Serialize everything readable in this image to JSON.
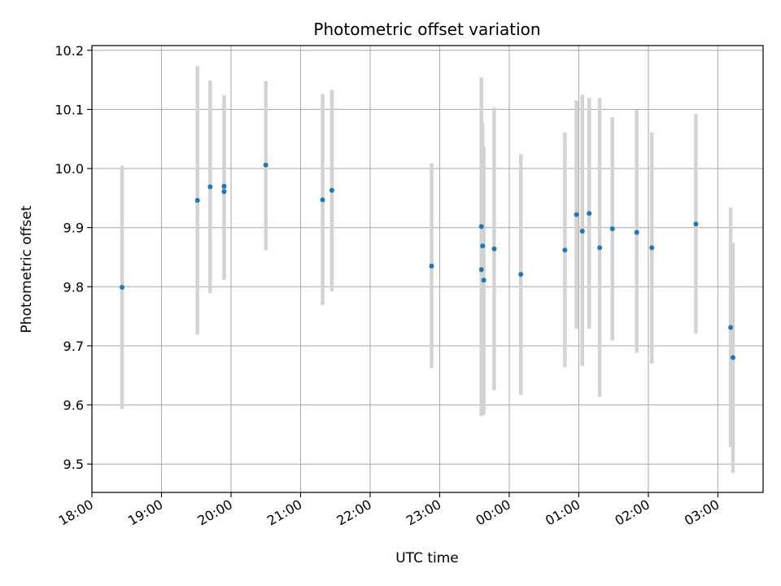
{
  "chart_data": {
    "type": "scatter",
    "title": "Photometric offset variation",
    "xlabel": "UTC time",
    "ylabel": "Photometric offset",
    "x_ticks": [
      "18:00",
      "19:00",
      "20:00",
      "21:00",
      "22:00",
      "23:00",
      "00:00",
      "01:00",
      "02:00",
      "03:00"
    ],
    "y_ticks": [
      "9.5",
      "9.6",
      "9.7",
      "9.8",
      "9.9",
      "10.0",
      "10.1",
      "10.2"
    ],
    "xlim": [
      "18:00",
      "03:39"
    ],
    "ylim": [
      9.452,
      10.208
    ],
    "grid": true,
    "legend": "none",
    "colors": {
      "point": "#1f77b4",
      "errorbar": "#d3d3d3",
      "grid": "#b0b0b0"
    },
    "points": [
      {
        "time": "18:26",
        "y": 9.799,
        "yerr_low": 9.593,
        "yerr_high": 10.005
      },
      {
        "time": "19:31",
        "y": 9.946,
        "yerr_low": 9.719,
        "yerr_high": 10.173
      },
      {
        "time": "19:42",
        "y": 9.969,
        "yerr_low": 9.789,
        "yerr_high": 10.149
      },
      {
        "time": "19:54",
        "y": 9.97,
        "yerr_low": 9.812,
        "yerr_high": 10.124
      },
      {
        "time": "19:54",
        "y": 9.961,
        "yerr_low": 9.812,
        "yerr_high": 10.124
      },
      {
        "time": "20:30",
        "y": 10.006,
        "yerr_low": 9.862,
        "yerr_high": 10.148
      },
      {
        "time": "21:19",
        "y": 9.947,
        "yerr_low": 9.769,
        "yerr_high": 10.126
      },
      {
        "time": "21:27",
        "y": 9.963,
        "yerr_low": 9.792,
        "yerr_high": 10.133
      },
      {
        "time": "22:53",
        "y": 9.835,
        "yerr_low": 9.662,
        "yerr_high": 10.009
      },
      {
        "time": "23:36",
        "y": 9.902,
        "yerr_low": 9.651,
        "yerr_high": 10.154
      },
      {
        "time": "23:37",
        "y": 9.869,
        "yerr_low": 9.658,
        "yerr_high": 10.077
      },
      {
        "time": "23:36",
        "y": 9.829,
        "yerr_low": 9.581,
        "yerr_high": 10.076
      },
      {
        "time": "23:38",
        "y": 9.811,
        "yerr_low": 9.583,
        "yerr_high": 10.038
      },
      {
        "time": "23:47",
        "y": 9.864,
        "yerr_low": 9.625,
        "yerr_high": 10.103
      },
      {
        "time": "00:10",
        "y": 9.821,
        "yerr_low": 9.617,
        "yerr_high": 10.024
      },
      {
        "time": "00:48",
        "y": 9.862,
        "yerr_low": 9.664,
        "yerr_high": 10.061
      },
      {
        "time": "00:58",
        "y": 9.922,
        "yerr_low": 9.729,
        "yerr_high": 10.115
      },
      {
        "time": "01:03",
        "y": 9.894,
        "yerr_low": 9.666,
        "yerr_high": 10.125
      },
      {
        "time": "01:09",
        "y": 9.924,
        "yerr_low": 9.729,
        "yerr_high": 10.119
      },
      {
        "time": "01:18",
        "y": 9.866,
        "yerr_low": 9.614,
        "yerr_high": 10.119
      },
      {
        "time": "01:29",
        "y": 9.898,
        "yerr_low": 9.709,
        "yerr_high": 10.087
      },
      {
        "time": "01:50",
        "y": 9.892,
        "yerr_low": 9.688,
        "yerr_high": 10.099
      },
      {
        "time": "02:03",
        "y": 9.866,
        "yerr_low": 9.67,
        "yerr_high": 10.061
      },
      {
        "time": "02:41",
        "y": 9.906,
        "yerr_low": 9.721,
        "yerr_high": 10.092
      },
      {
        "time": "03:11",
        "y": 9.731,
        "yerr_low": 9.529,
        "yerr_high": 9.934
      },
      {
        "time": "03:13",
        "y": 9.68,
        "yerr_low": 9.485,
        "yerr_high": 9.874
      }
    ]
  }
}
